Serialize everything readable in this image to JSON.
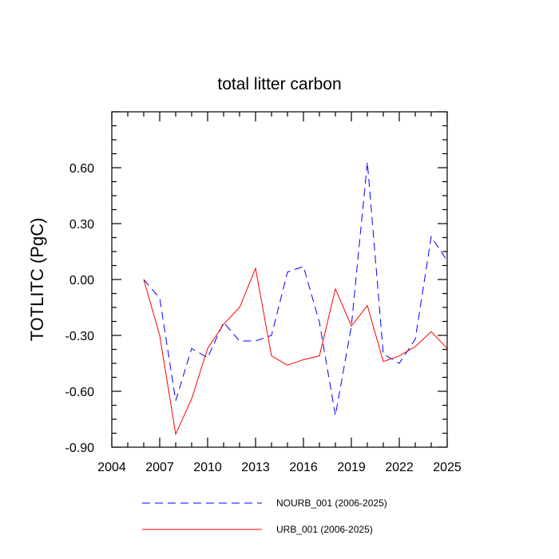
{
  "chart_data": {
    "type": "line",
    "title": "total litter carbon",
    "ylabel": "TOTLITC  (PgC)",
    "xlabel": "",
    "xlim": [
      2004,
      2025
    ],
    "ylim": [
      -0.9,
      0.9
    ],
    "x_ticks": [
      "2004",
      "2007",
      "2010",
      "2013",
      "2016",
      "2019",
      "2022",
      "2025"
    ],
    "y_ticks": [
      "0.60",
      "0.30",
      "0.00",
      "-0.30",
      "-0.60",
      "-0.90"
    ],
    "x": [
      2006,
      2007,
      2008,
      2009,
      2010,
      2011,
      2012,
      2013,
      2014,
      2015,
      2016,
      2017,
      2018,
      2019,
      2020,
      2021,
      2022,
      2023,
      2024,
      2025
    ],
    "series": [
      {
        "name": "NOURB_001 (2006-2025)",
        "color": "#0000ff",
        "style": "dashed",
        "values": [
          0.0,
          -0.1,
          -0.65,
          -0.37,
          -0.42,
          -0.23,
          -0.33,
          -0.33,
          -0.3,
          0.04,
          0.07,
          -0.23,
          -0.73,
          -0.25,
          0.63,
          -0.4,
          -0.45,
          -0.32,
          0.23,
          0.1
        ]
      },
      {
        "name": "URB_001 (2006-2025)",
        "color": "#ff0000",
        "style": "solid",
        "values": [
          0.0,
          -0.3,
          -0.83,
          -0.64,
          -0.37,
          -0.24,
          -0.15,
          0.06,
          -0.41,
          -0.46,
          -0.43,
          -0.41,
          -0.05,
          -0.25,
          -0.14,
          -0.44,
          -0.41,
          -0.36,
          -0.28,
          -0.37
        ]
      }
    ],
    "legend_position": "bottom"
  }
}
